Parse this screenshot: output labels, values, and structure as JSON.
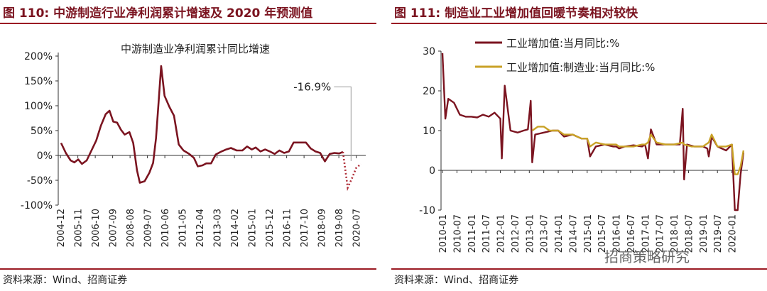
{
  "panels": [
    {
      "figure_title": "图 110: 中游制造行业净利润累计增速及 2020 年预测值",
      "source": "资料来源：Wind、招商证券"
    },
    {
      "figure_title": "图 111: 制造业工业增加值回暖节奏相对较快",
      "source": "资料来源：Wind、招商证券"
    }
  ],
  "watermark": "招商策略研究",
  "colors": {
    "accent": "#9b1b24",
    "series_dark": "#7b1420",
    "series_gold": "#c9a227",
    "forecast": "#b0303a",
    "annotation_line": "#9a9a9a"
  },
  "chart_data": [
    {
      "type": "line",
      "title": "中游制造业净利润累计同比增速",
      "x_ticks": [
        "2004-12",
        "2005-11",
        "2006-10",
        "2007-09",
        "2008-08",
        "2009-07",
        "2010-06",
        "2011-05",
        "2012-04",
        "2013-03",
        "2014-02",
        "2015-01",
        "2015-12",
        "2016-11",
        "2017-10",
        "2018-09",
        "2019-08",
        "2020-07"
      ],
      "y_ticks": [
        "200%",
        "150%",
        "100%",
        "50%",
        "0%",
        "-50%",
        "-100%"
      ],
      "ylim": [
        -100,
        200
      ],
      "grid": false,
      "annotation": "-16.9%",
      "series": [
        {
          "style": "solid",
          "points": [
            [
              2004.95,
              25
            ],
            [
              2005.2,
              5
            ],
            [
              2005.45,
              -10
            ],
            [
              2005.65,
              -14
            ],
            [
              2005.85,
              -8
            ],
            [
              2006.05,
              -17
            ],
            [
              2006.3,
              -10
            ],
            [
              2006.55,
              10
            ],
            [
              2006.8,
              30
            ],
            [
              2007.05,
              60
            ],
            [
              2007.3,
              83
            ],
            [
              2007.5,
              90
            ],
            [
              2007.7,
              68
            ],
            [
              2007.9,
              66
            ],
            [
              2008.1,
              52
            ],
            [
              2008.3,
              42
            ],
            [
              2008.55,
              47
            ],
            [
              2008.75,
              25
            ],
            [
              2008.95,
              -30
            ],
            [
              2009.1,
              -55
            ],
            [
              2009.35,
              -52
            ],
            [
              2009.6,
              -35
            ],
            [
              2009.8,
              -15
            ],
            [
              2009.95,
              35
            ],
            [
              2010.1,
              115
            ],
            [
              2010.22,
              180
            ],
            [
              2010.4,
              120
            ],
            [
              2010.65,
              98
            ],
            [
              2010.9,
              80
            ],
            [
              2011.15,
              22
            ],
            [
              2011.4,
              10
            ],
            [
              2011.7,
              3
            ],
            [
              2011.95,
              -5
            ],
            [
              2012.15,
              -22
            ],
            [
              2012.4,
              -20
            ],
            [
              2012.6,
              -16
            ],
            [
              2012.85,
              -16
            ],
            [
              2013.1,
              2
            ],
            [
              2013.4,
              8
            ],
            [
              2013.65,
              12
            ],
            [
              2013.9,
              15
            ],
            [
              2014.2,
              10
            ],
            [
              2014.5,
              10
            ],
            [
              2014.75,
              18
            ],
            [
              2015.0,
              12
            ],
            [
              2015.2,
              16
            ],
            [
              2015.45,
              8
            ],
            [
              2015.7,
              12
            ],
            [
              2015.95,
              8
            ],
            [
              2016.2,
              3
            ],
            [
              2016.45,
              10
            ],
            [
              2016.7,
              5
            ],
            [
              2016.95,
              8
            ],
            [
              2017.2,
              26
            ],
            [
              2017.5,
              26
            ],
            [
              2017.85,
              26
            ],
            [
              2018.1,
              14
            ],
            [
              2018.35,
              8
            ],
            [
              2018.6,
              5
            ],
            [
              2018.85,
              -12
            ],
            [
              2019.1,
              3
            ],
            [
              2019.35,
              5
            ],
            [
              2019.6,
              4
            ],
            [
              2019.8,
              7
            ]
          ]
        },
        {
          "style": "dotted",
          "points": [
            [
              2019.8,
              7
            ],
            [
              2020.05,
              -65
            ],
            [
              2020.25,
              -48
            ],
            [
              2020.5,
              -25
            ],
            [
              2020.75,
              -17
            ]
          ]
        }
      ]
    },
    {
      "type": "line",
      "x_ticks": [
        "2010-01",
        "2010-07",
        "2011-01",
        "2011-07",
        "2012-01",
        "2012-07",
        "2013-01",
        "2013-07",
        "2014-01",
        "2014-07",
        "2015-01",
        "2015-07",
        "2016-01",
        "2016-07",
        "2017-01",
        "2017-07",
        "2018-01",
        "2018-07",
        "2019-01",
        "2019-07",
        "2020-01"
      ],
      "y_ticks": [
        "30",
        "20",
        "10",
        "0",
        "-10"
      ],
      "ylim": [
        -10,
        30
      ],
      "grid": false,
      "legend_position": "top-center",
      "series": [
        {
          "name": "工业增加值:当月同比:%",
          "color": "#7b1420",
          "points": [
            [
              2010.0,
              29.5
            ],
            [
              2010.1,
              13
            ],
            [
              2010.2,
              18
            ],
            [
              2010.4,
              17
            ],
            [
              2010.6,
              14
            ],
            [
              2010.8,
              13.5
            ],
            [
              2011.0,
              13.5
            ],
            [
              2011.2,
              13.3
            ],
            [
              2011.4,
              14
            ],
            [
              2011.6,
              13.5
            ],
            [
              2011.8,
              14.5
            ],
            [
              2012.0,
              13
            ],
            [
              2012.05,
              3
            ],
            [
              2012.15,
              21.3
            ],
            [
              2012.35,
              10
            ],
            [
              2012.6,
              9.5
            ],
            [
              2012.8,
              10
            ],
            [
              2012.95,
              10.3
            ],
            [
              2013.05,
              17.5
            ],
            [
              2013.1,
              2
            ],
            [
              2013.2,
              9
            ],
            [
              2013.5,
              9.5
            ],
            [
              2013.8,
              10
            ],
            [
              2014.0,
              10
            ],
            [
              2014.2,
              8.5
            ],
            [
              2014.5,
              9
            ],
            [
              2014.8,
              8
            ],
            [
              2015.0,
              8
            ],
            [
              2015.1,
              3.5
            ],
            [
              2015.3,
              6
            ],
            [
              2015.6,
              6.5
            ],
            [
              2015.9,
              6
            ],
            [
              2016.0,
              6
            ],
            [
              2016.1,
              5.5
            ],
            [
              2016.3,
              6
            ],
            [
              2016.6,
              6.3
            ],
            [
              2016.9,
              6
            ],
            [
              2017.0,
              6.5
            ],
            [
              2017.1,
              3
            ],
            [
              2017.2,
              10.3
            ],
            [
              2017.4,
              6.5
            ],
            [
              2017.7,
              6.5
            ],
            [
              2017.95,
              6.5
            ],
            [
              2018.0,
              6.5
            ],
            [
              2018.2,
              6.5
            ],
            [
              2018.3,
              15.5
            ],
            [
              2018.35,
              -2.3
            ],
            [
              2018.45,
              6.5
            ],
            [
              2018.7,
              6
            ],
            [
              2019.0,
              6
            ],
            [
              2019.15,
              5.5
            ],
            [
              2019.2,
              3.5
            ],
            [
              2019.3,
              8.5
            ],
            [
              2019.5,
              6
            ],
            [
              2019.8,
              5
            ],
            [
              2020.0,
              6.5
            ],
            [
              2020.1,
              -10
            ],
            [
              2020.2,
              -10
            ],
            [
              2020.3,
              -1
            ],
            [
              2020.4,
              4.5
            ]
          ]
        },
        {
          "name": "工业增加值:制造业:当月同比:%",
          "color": "#c9a227",
          "points": [
            [
              2013.1,
              10
            ],
            [
              2013.3,
              11
            ],
            [
              2013.5,
              11
            ],
            [
              2013.7,
              10
            ],
            [
              2014.0,
              10
            ],
            [
              2014.2,
              9
            ],
            [
              2014.5,
              9
            ],
            [
              2014.8,
              8
            ],
            [
              2015.0,
              8
            ],
            [
              2015.1,
              6
            ],
            [
              2015.3,
              7
            ],
            [
              2015.6,
              6.5
            ],
            [
              2015.9,
              6.5
            ],
            [
              2016.0,
              6.5
            ],
            [
              2016.1,
              6
            ],
            [
              2016.3,
              6
            ],
            [
              2016.6,
              6
            ],
            [
              2016.9,
              6.5
            ],
            [
              2017.0,
              6.5
            ],
            [
              2017.1,
              7
            ],
            [
              2017.2,
              9
            ],
            [
              2017.4,
              7
            ],
            [
              2017.7,
              6.5
            ],
            [
              2017.95,
              6.5
            ],
            [
              2018.0,
              6.5
            ],
            [
              2018.3,
              7
            ],
            [
              2018.35,
              6.5
            ],
            [
              2018.6,
              6
            ],
            [
              2019.0,
              6
            ],
            [
              2019.2,
              7
            ],
            [
              2019.3,
              9
            ],
            [
              2019.5,
              6
            ],
            [
              2019.8,
              6
            ],
            [
              2020.0,
              6.5
            ],
            [
              2020.1,
              -1
            ],
            [
              2020.2,
              -1
            ],
            [
              2020.3,
              1
            ],
            [
              2020.4,
              5
            ]
          ]
        }
      ]
    }
  ]
}
